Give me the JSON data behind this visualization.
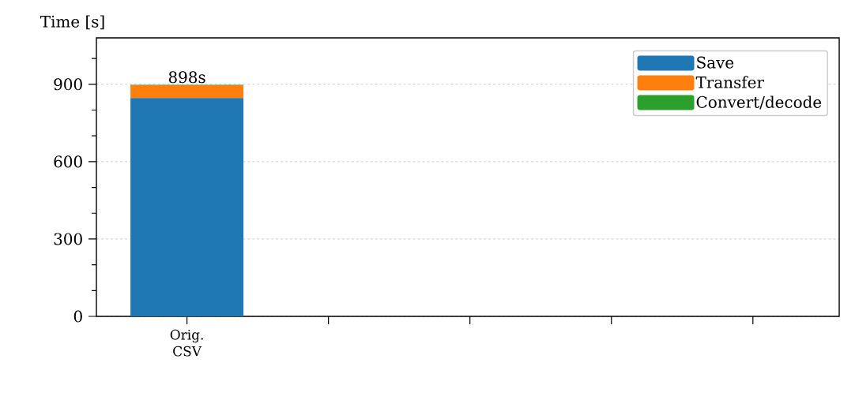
{
  "chart_data": {
    "type": "bar",
    "stacked": true,
    "ylabel": "Time [s]",
    "categories": [
      "Orig. CSV",
      null,
      null,
      null,
      null
    ],
    "series": [
      {
        "name": "Save",
        "color": "#1f77b4",
        "values": [
          847,
          null,
          null,
          null,
          null
        ]
      },
      {
        "name": "Transfer",
        "color": "#ff7f0e",
        "values": [
          49,
          null,
          null,
          null,
          null
        ]
      },
      {
        "name": "Convert/decode",
        "color": "#2ca02c",
        "values": [
          2,
          null,
          null,
          null,
          null
        ]
      }
    ],
    "totals": [
      "898s",
      null,
      null,
      null,
      null
    ],
    "ylim": [
      0,
      1080
    ],
    "yticks": [
      0,
      {
        "value": 100,
        "label": null
      },
      {
        "value": 200,
        "label": null
      },
      300,
      {
        "value": 400,
        "label": null
      },
      {
        "value": 500,
        "label": null
      },
      600,
      {
        "value": 700,
        "label": null
      },
      {
        "value": 800,
        "label": null
      },
      900,
      {
        "value": 1000,
        "label": null
      }
    ],
    "grid": "y",
    "legend": "top right"
  }
}
